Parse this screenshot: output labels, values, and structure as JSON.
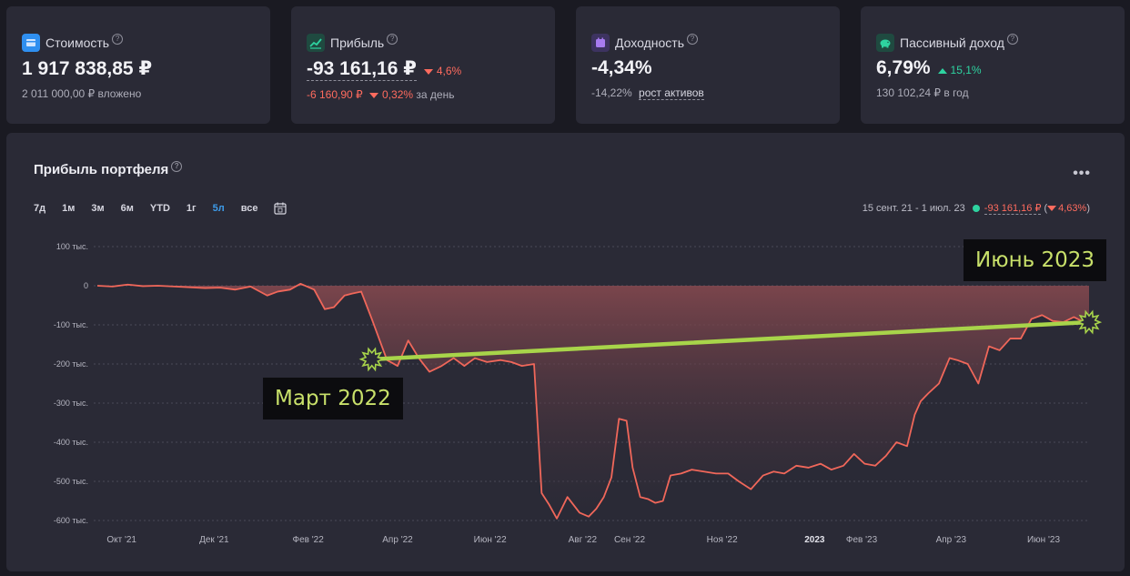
{
  "cards": [
    {
      "label": "Стоимость",
      "value": "1 917 838,85 ₽",
      "sub": "2 011 000,00 ₽ вложено",
      "icon": "wallet-icon",
      "icon_color": "#2f8ff0"
    },
    {
      "label": "Прибыль",
      "value": "-93 161,16 ₽",
      "change": "4,6%",
      "sub_value": "-6 160,90 ₽",
      "sub_change": "0,32%",
      "sub_suffix": "за день",
      "icon": "chart-icon",
      "icon_color": "#2ed3a0"
    },
    {
      "label": "Доходность",
      "value": "-4,34%",
      "sub_value": "-14,22%",
      "sub_link": "рост активов",
      "icon": "calendar-icon",
      "icon_color": "#a77bf0"
    },
    {
      "label": "Пассивный доход",
      "value": "6,79%",
      "change": "15,1%",
      "sub": "130 102,24 ₽ в год",
      "icon": "piggy-bank-icon",
      "icon_color": "#2ed3a0"
    }
  ],
  "panel": {
    "title": "Прибыль портфеля",
    "menu": "•••",
    "ranges": [
      "7д",
      "1м",
      "3м",
      "6м",
      "YTD",
      "1г",
      "5л",
      "все"
    ],
    "active_range": "5л",
    "period": "15 сент. 21 - 1 июл. 23",
    "period_value": "-93 161,16 ₽",
    "period_change_open": "(",
    "period_change": "4,63%",
    "period_change_close": ")"
  },
  "annotations": {
    "start_label": "Март 2022",
    "end_label": "Июнь 2023"
  },
  "colors": {
    "line": "#f0675a",
    "trend": "#a8d44a",
    "positive": "#2ed3a0",
    "negative": "#ff6b5e",
    "active": "#3d9be9"
  },
  "chart_data": {
    "type": "area",
    "title": "Прибыль портфеля",
    "ylim": [
      -625000,
      100000
    ],
    "yticks": [
      100000,
      0,
      -100000,
      -200000,
      -300000,
      -400000,
      -500000,
      -600000
    ],
    "ytick_labels": [
      "100 тыс.",
      "0",
      "-100 тыс.",
      "-200 тыс.",
      "-300 тыс.",
      "-400 тыс.",
      "-500 тыс.",
      "-600 тыс."
    ],
    "xtick_labels": [
      "Окт '21",
      "Дек '21",
      "Фев '22",
      "Апр '22",
      "Июн '22",
      "Авг '22",
      "Сен '22",
      "Ноя '22",
      "2023",
      "Фев '23",
      "Апр '23",
      "Июн '23"
    ],
    "xtick_dates": [
      "2021-10-01",
      "2021-12-01",
      "2022-02-01",
      "2022-04-01",
      "2022-06-01",
      "2022-08-01",
      "2022-09-01",
      "2022-11-01",
      "2023-01-01",
      "2023-02-01",
      "2023-04-01",
      "2023-06-01"
    ],
    "grid": true,
    "series": [
      {
        "dates": [
          "2021-09-15",
          "2021-09-25",
          "2021-10-05",
          "2021-10-15",
          "2021-10-25",
          "2021-11-05",
          "2021-11-15",
          "2021-11-25",
          "2021-12-05",
          "2021-12-15",
          "2021-12-25",
          "2022-01-05",
          "2022-01-12",
          "2022-01-20",
          "2022-01-27",
          "2022-02-05",
          "2022-02-12",
          "2022-02-18",
          "2022-02-25",
          "2022-03-02",
          "2022-03-08",
          "2022-03-15",
          "2022-03-25",
          "2022-04-01",
          "2022-04-08",
          "2022-04-15",
          "2022-04-22",
          "2022-04-30",
          "2022-05-08",
          "2022-05-15",
          "2022-05-22",
          "2022-05-30",
          "2022-06-08",
          "2022-06-15",
          "2022-06-22",
          "2022-06-30",
          "2022-07-05",
          "2022-07-10",
          "2022-07-15",
          "2022-07-22",
          "2022-07-30",
          "2022-08-05",
          "2022-08-10",
          "2022-08-15",
          "2022-08-20",
          "2022-08-25",
          "2022-08-30",
          "2022-09-03",
          "2022-09-08",
          "2022-09-13",
          "2022-09-18",
          "2022-09-23",
          "2022-09-28",
          "2022-10-05",
          "2022-10-12",
          "2022-10-20",
          "2022-10-28",
          "2022-11-05",
          "2022-11-12",
          "2022-11-20",
          "2022-11-28",
          "2022-12-05",
          "2022-12-12",
          "2022-12-20",
          "2022-12-28",
          "2023-01-05",
          "2023-01-12",
          "2023-01-20",
          "2023-01-27",
          "2023-02-03",
          "2023-02-10",
          "2023-02-17",
          "2023-02-24",
          "2023-03-03",
          "2023-03-08",
          "2023-03-12",
          "2023-03-17",
          "2023-03-24",
          "2023-03-31",
          "2023-04-05",
          "2023-04-12",
          "2023-04-19",
          "2023-04-26",
          "2023-05-03",
          "2023-05-10",
          "2023-05-17",
          "2023-05-24",
          "2023-05-31",
          "2023-06-07",
          "2023-06-14",
          "2023-06-21",
          "2023-06-26",
          "2023-07-01"
        ],
        "values": [
          0,
          -2000,
          3000,
          -1000,
          0,
          -2000,
          -4000,
          -6000,
          -5000,
          -10000,
          -2000,
          -25000,
          -15000,
          -10000,
          5000,
          -10000,
          -60000,
          -55000,
          -25000,
          -20000,
          -15000,
          -85000,
          -190000,
          -205000,
          -140000,
          -185000,
          -220000,
          -205000,
          -185000,
          -205000,
          -185000,
          -195000,
          -190000,
          -195000,
          -205000,
          -200000,
          -530000,
          -560000,
          -595000,
          -540000,
          -580000,
          -590000,
          -570000,
          -540000,
          -490000,
          -340000,
          -345000,
          -465000,
          -540000,
          -545000,
          -555000,
          -550000,
          -485000,
          -480000,
          -470000,
          -475000,
          -480000,
          -480000,
          -500000,
          -520000,
          -485000,
          -475000,
          -480000,
          -460000,
          -465000,
          -455000,
          -470000,
          -460000,
          -430000,
          -455000,
          -460000,
          -435000,
          -400000,
          -410000,
          -330000,
          -295000,
          -275000,
          -250000,
          -185000,
          -190000,
          -200000,
          -250000,
          -155000,
          -165000,
          -135000,
          -135000,
          -85000,
          -75000,
          -90000,
          -93161,
          -80000,
          -90000,
          -93161
        ]
      }
    ],
    "trend": {
      "from": [
        "2022-03-15",
        -188000
      ],
      "to": [
        "2023-07-01",
        -93161
      ]
    }
  }
}
